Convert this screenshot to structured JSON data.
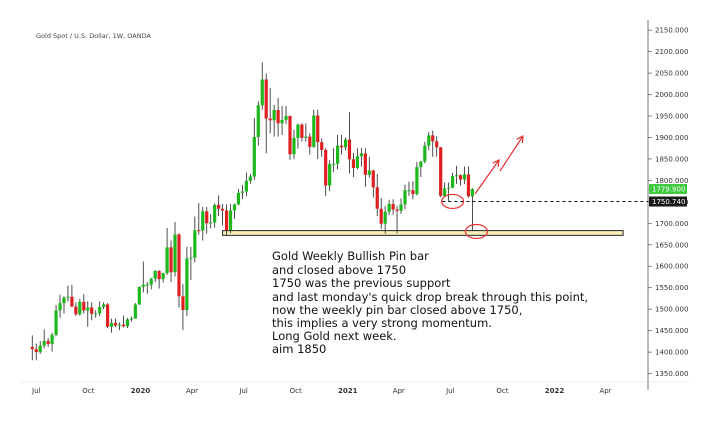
{
  "chart_data": {
    "type": "candlestick",
    "title": "Gold Spot / U.S. Dollar, 1W, OANDA",
    "y_ticks": [
      "2150.000",
      "2100.000",
      "2050.000",
      "2000.000",
      "1950.000",
      "1900.000",
      "1850.000",
      "1800.000",
      "1750.000",
      "1700.000",
      "1650.000",
      "1600.000",
      "1550.000",
      "1500.000",
      "1450.000",
      "1400.000",
      "1350.000"
    ],
    "y_tick_values": [
      2150,
      2100,
      2050,
      2000,
      1950,
      1900,
      1850,
      1800,
      1750,
      1700,
      1650,
      1600,
      1550,
      1500,
      1450,
      1400,
      1350
    ],
    "ylim": [
      1335,
      2155
    ],
    "x_ticks": [
      "Jul",
      "Oct",
      "2020",
      "Apr",
      "Jul",
      "Oct",
      "2021",
      "Apr",
      "Jul",
      "Oct",
      "2022",
      "Apr"
    ],
    "x_tick_dates": [
      "2019-07-01",
      "2019-10-01",
      "2020-01-01",
      "2020-04-01",
      "2020-07-01",
      "2020-10-01",
      "2021-01-01",
      "2021-04-01",
      "2021-07-01",
      "2021-10-01",
      "2022-01-01",
      "2022-04-01"
    ],
    "price_labels": {
      "current": "1779.900",
      "level": "1750.740"
    },
    "price_values": {
      "current": 1779.9,
      "level": 1750.74
    },
    "support_zone": [
      1672,
      1683
    ],
    "support_zone_dates": [
      "2020-05-25",
      "2022-05-02"
    ],
    "candles": [
      {
        "date": "2019-06-24",
        "o": 1412,
        "h": 1439,
        "l": 1381,
        "c": 1407
      },
      {
        "date": "2019-07-01",
        "o": 1407,
        "h": 1420,
        "l": 1381,
        "c": 1400
      },
      {
        "date": "2019-07-08",
        "o": 1400,
        "h": 1426,
        "l": 1396,
        "c": 1415
      },
      {
        "date": "2019-07-15",
        "o": 1415,
        "h": 1453,
        "l": 1409,
        "c": 1426
      },
      {
        "date": "2019-07-22",
        "o": 1426,
        "h": 1433,
        "l": 1412,
        "c": 1419
      },
      {
        "date": "2019-07-29",
        "o": 1419,
        "h": 1445,
        "l": 1401,
        "c": 1440
      },
      {
        "date": "2019-08-05",
        "o": 1440,
        "h": 1510,
        "l": 1437,
        "c": 1497
      },
      {
        "date": "2019-08-12",
        "o": 1497,
        "h": 1534,
        "l": 1480,
        "c": 1514
      },
      {
        "date": "2019-08-19",
        "o": 1514,
        "h": 1530,
        "l": 1490,
        "c": 1527
      },
      {
        "date": "2019-08-26",
        "o": 1527,
        "h": 1555,
        "l": 1518,
        "c": 1529
      },
      {
        "date": "2019-09-02",
        "o": 1529,
        "h": 1557,
        "l": 1505,
        "c": 1506
      },
      {
        "date": "2019-09-09",
        "o": 1506,
        "h": 1516,
        "l": 1484,
        "c": 1488
      },
      {
        "date": "2019-09-16",
        "o": 1488,
        "h": 1524,
        "l": 1485,
        "c": 1517
      },
      {
        "date": "2019-09-23",
        "o": 1517,
        "h": 1535,
        "l": 1490,
        "c": 1497
      },
      {
        "date": "2019-09-30",
        "o": 1497,
        "h": 1519,
        "l": 1459,
        "c": 1504
      },
      {
        "date": "2019-10-07",
        "o": 1504,
        "h": 1516,
        "l": 1474,
        "c": 1489
      },
      {
        "date": "2019-10-14",
        "o": 1489,
        "h": 1498,
        "l": 1480,
        "c": 1490
      },
      {
        "date": "2019-10-21",
        "o": 1490,
        "h": 1518,
        "l": 1484,
        "c": 1505
      },
      {
        "date": "2019-10-28",
        "o": 1505,
        "h": 1516,
        "l": 1500,
        "c": 1511
      },
      {
        "date": "2019-11-04",
        "o": 1511,
        "h": 1514,
        "l": 1456,
        "c": 1459
      },
      {
        "date": "2019-11-11",
        "o": 1459,
        "h": 1478,
        "l": 1445,
        "c": 1468
      },
      {
        "date": "2019-11-18",
        "o": 1468,
        "h": 1478,
        "l": 1458,
        "c": 1462
      },
      {
        "date": "2019-11-25",
        "o": 1462,
        "h": 1469,
        "l": 1451,
        "c": 1464
      },
      {
        "date": "2019-12-02",
        "o": 1464,
        "h": 1485,
        "l": 1458,
        "c": 1460
      },
      {
        "date": "2019-12-09",
        "o": 1460,
        "h": 1480,
        "l": 1456,
        "c": 1476
      },
      {
        "date": "2019-12-16",
        "o": 1476,
        "h": 1483,
        "l": 1471,
        "c": 1478
      },
      {
        "date": "2019-12-23",
        "o": 1478,
        "h": 1514,
        "l": 1478,
        "c": 1511
      },
      {
        "date": "2019-12-30",
        "o": 1511,
        "h": 1553,
        "l": 1510,
        "c": 1552
      },
      {
        "date": "2020-01-06",
        "o": 1552,
        "h": 1611,
        "l": 1539,
        "c": 1557
      },
      {
        "date": "2020-01-13",
        "o": 1557,
        "h": 1563,
        "l": 1536,
        "c": 1557
      },
      {
        "date": "2020-01-20",
        "o": 1557,
        "h": 1573,
        "l": 1546,
        "c": 1571
      },
      {
        "date": "2020-01-27",
        "o": 1571,
        "h": 1591,
        "l": 1563,
        "c": 1589
      },
      {
        "date": "2020-02-03",
        "o": 1589,
        "h": 1591,
        "l": 1548,
        "c": 1570
      },
      {
        "date": "2020-02-10",
        "o": 1570,
        "h": 1585,
        "l": 1562,
        "c": 1584
      },
      {
        "date": "2020-02-17",
        "o": 1584,
        "h": 1689,
        "l": 1580,
        "c": 1644
      },
      {
        "date": "2020-02-24",
        "o": 1644,
        "h": 1660,
        "l": 1563,
        "c": 1586
      },
      {
        "date": "2020-03-02",
        "o": 1586,
        "h": 1703,
        "l": 1576,
        "c": 1674
      },
      {
        "date": "2020-03-09",
        "o": 1674,
        "h": 1677,
        "l": 1504,
        "c": 1530
      },
      {
        "date": "2020-03-16",
        "o": 1530,
        "h": 1558,
        "l": 1451,
        "c": 1498
      },
      {
        "date": "2020-03-23",
        "o": 1498,
        "h": 1645,
        "l": 1484,
        "c": 1618
      },
      {
        "date": "2020-03-30",
        "o": 1618,
        "h": 1645,
        "l": 1568,
        "c": 1620
      },
      {
        "date": "2020-04-06",
        "o": 1620,
        "h": 1716,
        "l": 1609,
        "c": 1684
      },
      {
        "date": "2020-04-13",
        "o": 1684,
        "h": 1747,
        "l": 1674,
        "c": 1683
      },
      {
        "date": "2020-04-20",
        "o": 1683,
        "h": 1738,
        "l": 1660,
        "c": 1728
      },
      {
        "date": "2020-04-27",
        "o": 1728,
        "h": 1738,
        "l": 1676,
        "c": 1700
      },
      {
        "date": "2020-05-04",
        "o": 1700,
        "h": 1722,
        "l": 1688,
        "c": 1702
      },
      {
        "date": "2020-05-11",
        "o": 1702,
        "h": 1746,
        "l": 1690,
        "c": 1743
      },
      {
        "date": "2020-05-18",
        "o": 1743,
        "h": 1765,
        "l": 1717,
        "c": 1734
      },
      {
        "date": "2020-05-25",
        "o": 1734,
        "h": 1745,
        "l": 1695,
        "c": 1730
      },
      {
        "date": "2020-06-01",
        "o": 1730,
        "h": 1744,
        "l": 1671,
        "c": 1684
      },
      {
        "date": "2020-06-08",
        "o": 1684,
        "h": 1745,
        "l": 1677,
        "c": 1730
      },
      {
        "date": "2020-06-15",
        "o": 1730,
        "h": 1746,
        "l": 1710,
        "c": 1744
      },
      {
        "date": "2020-06-22",
        "o": 1744,
        "h": 1780,
        "l": 1742,
        "c": 1771
      },
      {
        "date": "2020-06-29",
        "o": 1771,
        "h": 1789,
        "l": 1756,
        "c": 1774
      },
      {
        "date": "2020-07-06",
        "o": 1774,
        "h": 1818,
        "l": 1763,
        "c": 1799
      },
      {
        "date": "2020-07-13",
        "o": 1799,
        "h": 1815,
        "l": 1792,
        "c": 1809
      },
      {
        "date": "2020-07-20",
        "o": 1809,
        "h": 1945,
        "l": 1801,
        "c": 1901
      },
      {
        "date": "2020-07-27",
        "o": 1901,
        "h": 1984,
        "l": 1881,
        "c": 1975
      },
      {
        "date": "2020-08-03",
        "o": 1975,
        "h": 2075,
        "l": 1965,
        "c": 2035
      },
      {
        "date": "2020-08-10",
        "o": 2035,
        "h": 2049,
        "l": 1863,
        "c": 1944
      },
      {
        "date": "2020-08-17",
        "o": 1944,
        "h": 2015,
        "l": 1910,
        "c": 1940
      },
      {
        "date": "2020-08-24",
        "o": 1940,
        "h": 1976,
        "l": 1902,
        "c": 1964
      },
      {
        "date": "2020-08-31",
        "o": 1964,
        "h": 1992,
        "l": 1902,
        "c": 1933
      },
      {
        "date": "2020-09-07",
        "o": 1933,
        "h": 1973,
        "l": 1906,
        "c": 1941
      },
      {
        "date": "2020-09-14",
        "o": 1941,
        "h": 1973,
        "l": 1931,
        "c": 1950
      },
      {
        "date": "2020-09-21",
        "o": 1950,
        "h": 1951,
        "l": 1848,
        "c": 1861
      },
      {
        "date": "2020-09-28",
        "o": 1861,
        "h": 1918,
        "l": 1850,
        "c": 1899
      },
      {
        "date": "2020-10-05",
        "o": 1899,
        "h": 1932,
        "l": 1874,
        "c": 1930
      },
      {
        "date": "2020-10-12",
        "o": 1930,
        "h": 1933,
        "l": 1890,
        "c": 1899
      },
      {
        "date": "2020-10-19",
        "o": 1899,
        "h": 1933,
        "l": 1890,
        "c": 1902
      },
      {
        "date": "2020-10-26",
        "o": 1902,
        "h": 1910,
        "l": 1860,
        "c": 1878
      },
      {
        "date": "2020-11-02",
        "o": 1878,
        "h": 1965,
        "l": 1876,
        "c": 1951
      },
      {
        "date": "2020-11-09",
        "o": 1951,
        "h": 1965,
        "l": 1850,
        "c": 1889
      },
      {
        "date": "2020-11-16",
        "o": 1889,
        "h": 1898,
        "l": 1855,
        "c": 1871
      },
      {
        "date": "2020-11-23",
        "o": 1871,
        "h": 1875,
        "l": 1764,
        "c": 1788
      },
      {
        "date": "2020-11-30",
        "o": 1788,
        "h": 1847,
        "l": 1775,
        "c": 1838
      },
      {
        "date": "2020-12-07",
        "o": 1838,
        "h": 1875,
        "l": 1820,
        "c": 1839
      },
      {
        "date": "2020-12-14",
        "o": 1839,
        "h": 1906,
        "l": 1826,
        "c": 1881
      },
      {
        "date": "2020-12-21",
        "o": 1881,
        "h": 1906,
        "l": 1860,
        "c": 1877
      },
      {
        "date": "2020-12-28",
        "o": 1877,
        "h": 1900,
        "l": 1870,
        "c": 1895
      },
      {
        "date": "2021-01-04",
        "o": 1895,
        "h": 1959,
        "l": 1817,
        "c": 1849
      },
      {
        "date": "2021-01-11",
        "o": 1849,
        "h": 1864,
        "l": 1808,
        "c": 1829
      },
      {
        "date": "2021-01-18",
        "o": 1829,
        "h": 1875,
        "l": 1826,
        "c": 1856
      },
      {
        "date": "2021-01-25",
        "o": 1856,
        "h": 1876,
        "l": 1832,
        "c": 1863
      },
      {
        "date": "2021-02-01",
        "o": 1863,
        "h": 1875,
        "l": 1785,
        "c": 1813
      },
      {
        "date": "2021-02-08",
        "o": 1813,
        "h": 1855,
        "l": 1806,
        "c": 1823
      },
      {
        "date": "2021-02-15",
        "o": 1823,
        "h": 1825,
        "l": 1760,
        "c": 1784
      },
      {
        "date": "2021-02-22",
        "o": 1784,
        "h": 1815,
        "l": 1717,
        "c": 1734
      },
      {
        "date": "2021-03-01",
        "o": 1734,
        "h": 1759,
        "l": 1687,
        "c": 1699
      },
      {
        "date": "2021-03-08",
        "o": 1699,
        "h": 1740,
        "l": 1676,
        "c": 1727
      },
      {
        "date": "2021-03-15",
        "o": 1727,
        "h": 1755,
        "l": 1719,
        "c": 1745
      },
      {
        "date": "2021-03-22",
        "o": 1745,
        "h": 1756,
        "l": 1720,
        "c": 1732
      },
      {
        "date": "2021-03-29",
        "o": 1732,
        "h": 1740,
        "l": 1677,
        "c": 1729
      },
      {
        "date": "2021-04-05",
        "o": 1729,
        "h": 1758,
        "l": 1722,
        "c": 1744
      },
      {
        "date": "2021-04-12",
        "o": 1744,
        "h": 1790,
        "l": 1733,
        "c": 1777
      },
      {
        "date": "2021-04-19",
        "o": 1777,
        "h": 1797,
        "l": 1764,
        "c": 1777
      },
      {
        "date": "2021-04-26",
        "o": 1777,
        "h": 1798,
        "l": 1756,
        "c": 1768
      },
      {
        "date": "2021-05-03",
        "o": 1768,
        "h": 1843,
        "l": 1765,
        "c": 1831
      },
      {
        "date": "2021-05-10",
        "o": 1831,
        "h": 1845,
        "l": 1808,
        "c": 1844
      },
      {
        "date": "2021-05-17",
        "o": 1844,
        "h": 1890,
        "l": 1840,
        "c": 1881
      },
      {
        "date": "2021-05-24",
        "o": 1881,
        "h": 1912,
        "l": 1870,
        "c": 1905
      },
      {
        "date": "2021-05-31",
        "o": 1905,
        "h": 1916,
        "l": 1855,
        "c": 1891
      },
      {
        "date": "2021-06-07",
        "o": 1891,
        "h": 1903,
        "l": 1855,
        "c": 1877
      },
      {
        "date": "2021-06-14",
        "o": 1877,
        "h": 1878,
        "l": 1761,
        "c": 1764
      },
      {
        "date": "2021-06-21",
        "o": 1764,
        "h": 1795,
        "l": 1761,
        "c": 1781
      },
      {
        "date": "2021-06-28",
        "o": 1781,
        "h": 1795,
        "l": 1750,
        "c": 1783
      },
      {
        "date": "2021-07-05",
        "o": 1783,
        "h": 1818,
        "l": 1782,
        "c": 1810
      },
      {
        "date": "2021-07-12",
        "o": 1810,
        "h": 1834,
        "l": 1792,
        "c": 1812
      },
      {
        "date": "2021-07-19",
        "o": 1812,
        "h": 1814,
        "l": 1788,
        "c": 1802
      },
      {
        "date": "2021-07-26",
        "o": 1802,
        "h": 1832,
        "l": 1792,
        "c": 1814
      },
      {
        "date": "2021-08-02",
        "o": 1814,
        "h": 1833,
        "l": 1760,
        "c": 1763
      },
      {
        "date": "2021-08-09",
        "o": 1763,
        "h": 1782,
        "l": 1682,
        "c": 1779.9
      }
    ]
  }
}
